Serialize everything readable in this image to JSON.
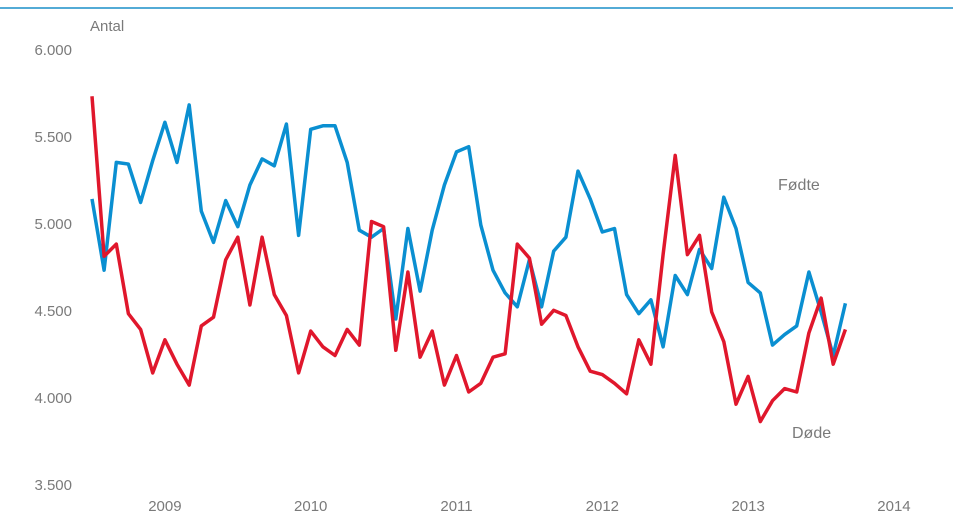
{
  "chart_data": {
    "type": "line",
    "y_label": "Antal",
    "x": [
      2009,
      2009.0833,
      2009.1667,
      2009.25,
      2009.3333,
      2009.4167,
      2009.5,
      2009.5833,
      2009.6667,
      2009.75,
      2009.8333,
      2009.9167,
      2010,
      2010.0833,
      2010.1667,
      2010.25,
      2010.3333,
      2010.4167,
      2010.5,
      2010.5833,
      2010.6667,
      2010.75,
      2010.8333,
      2010.9167,
      2011,
      2011.0833,
      2011.1667,
      2011.25,
      2011.3333,
      2011.4167,
      2011.5,
      2011.5833,
      2011.6667,
      2011.75,
      2011.8333,
      2011.9167,
      2012,
      2012.0833,
      2012.1667,
      2012.25,
      2012.3333,
      2012.4167,
      2012.5,
      2012.5833,
      2012.6667,
      2012.75,
      2012.8333,
      2012.9167,
      2013,
      2013.0833,
      2013.1667,
      2013.25,
      2013.3333,
      2013.4167,
      2013.5,
      2013.5833,
      2013.6667,
      2013.75,
      2013.8333,
      2013.9167,
      2014,
      2014.0833,
      2014.1667
    ],
    "series": [
      {
        "name": "Fødte",
        "color": "#0a8fd1",
        "values": [
          5150,
          4740,
          5360,
          5350,
          5130,
          5370,
          5590,
          5360,
          5690,
          5080,
          4900,
          5140,
          4990,
          5230,
          5380,
          5340,
          5580,
          4940,
          5550,
          5570,
          5570,
          5360,
          4970,
          4930,
          4980,
          4460,
          4980,
          4620,
          4970,
          5230,
          5420,
          5450,
          5000,
          4740,
          4610,
          4530,
          4800,
          4530,
          4850,
          4930,
          5310,
          5150,
          4960,
          4980,
          4600,
          4490,
          4570,
          4300,
          4710,
          4600,
          4860,
          4750,
          5160,
          4980,
          4670,
          4610,
          4310,
          4370,
          4420,
          4730,
          4500,
          4250,
          4550
        ]
      },
      {
        "name": "Døde",
        "color": "#e0172c",
        "values": [
          5740,
          4820,
          4890,
          4490,
          4400,
          4150,
          4340,
          4200,
          4080,
          4420,
          4470,
          4800,
          4930,
          4540,
          4930,
          4600,
          4480,
          4150,
          4390,
          4300,
          4250,
          4400,
          4310,
          5020,
          4990,
          4280,
          4730,
          4240,
          4390,
          4080,
          4250,
          4040,
          4090,
          4240,
          4260,
          4890,
          4810,
          4430,
          4510,
          4480,
          4300,
          4160,
          4140,
          4090,
          4030,
          4340,
          4200,
          4830,
          5400,
          4830,
          4940,
          4500,
          4330,
          3970,
          4130,
          3870,
          3990,
          4060,
          4040,
          4380,
          4580,
          4200,
          4400
        ]
      }
    ],
    "xlim": [
      2008.9,
      2014.85
    ],
    "xticks": [
      {
        "value": 2009.5,
        "label": "2009"
      },
      {
        "value": 2010.5,
        "label": "2010"
      },
      {
        "value": 2011.5,
        "label": "2011"
      },
      {
        "value": 2012.5,
        "label": "2012"
      },
      {
        "value": 2013.5,
        "label": "2013"
      },
      {
        "value": 2014.5,
        "label": "2014"
      }
    ],
    "ylim": [
      3500,
      6000
    ],
    "yticks": [
      {
        "value": 3500,
        "label": "3.500"
      },
      {
        "value": 4000,
        "label": "4.000"
      },
      {
        "value": 4500,
        "label": "4.500"
      },
      {
        "value": 5000,
        "label": "5.000"
      },
      {
        "value": 5500,
        "label": "5.500"
      },
      {
        "value": 6000,
        "label": "6.000"
      }
    ],
    "grid": false
  }
}
